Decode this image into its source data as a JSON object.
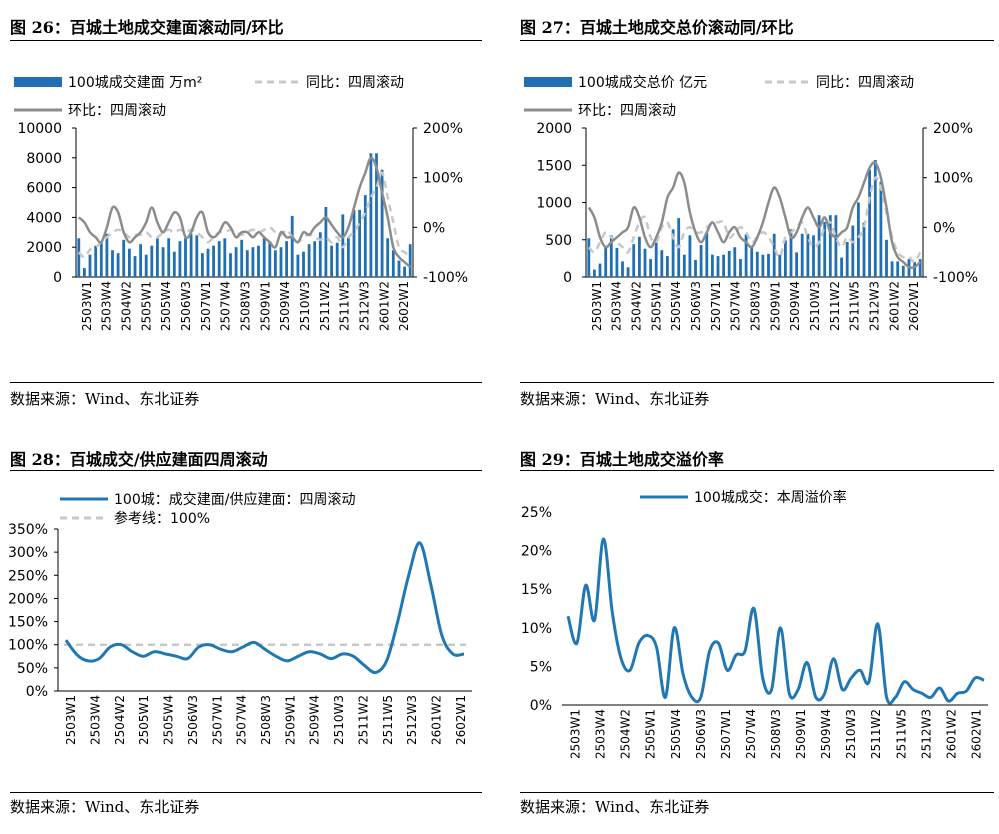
{
  "colors": {
    "bar": "#1f6fb2",
    "line_blue": "#1f78b4",
    "line_gray": "#8c8c8c",
    "ref_gray": "#c8c8c8"
  },
  "ticks_panel_top": [
    "2503W1",
    "2503W4",
    "2504W2",
    "2505W1",
    "2505W4",
    "2506W3",
    "2507W1",
    "2507W4",
    "2508W3",
    "2509W1",
    "2509W4",
    "2510W3",
    "2511W2",
    "2511W5",
    "2512W3",
    "2601W2",
    "2602W1"
  ],
  "panels": [
    {
      "title": "图 26：百城土地成交建面滚动同/环比",
      "source": "数据来源：Wind、东北证券",
      "chart_data": {
        "type": "bar",
        "title": "百城土地成交建面滚动同/环比",
        "legend": [
          "100城成交建面  万m²",
          "同比：四周滚动",
          "环比：四周滚动"
        ],
        "ylim_left": [
          0,
          10000
        ],
        "yticks_left": [
          "0",
          "2000",
          "4000",
          "6000",
          "8000",
          "10000"
        ],
        "ylim_right": [
          -100,
          200
        ],
        "yticks_right": [
          "-100%",
          "0%",
          "100%",
          "200%"
        ],
        "bars": [
          2600,
          600,
          1500,
          2100,
          2400,
          2900,
          1800,
          1600,
          2500,
          1900,
          1400,
          2200,
          1500,
          2100,
          2600,
          2000,
          2600,
          1700,
          2400,
          2600,
          2900,
          2800,
          1600,
          1900,
          2100,
          2400,
          2600,
          1600,
          2000,
          2500,
          1800,
          2000,
          2100,
          2600,
          2400,
          1800,
          2000,
          2400,
          4100,
          1500,
          1700,
          2200,
          2400,
          3000,
          4700,
          2100,
          2300,
          4200,
          2700,
          4500,
          4500,
          5500,
          8300,
          8300,
          7200,
          2600,
          1800,
          1100,
          700,
          2200
        ],
        "yoy": [
          -50,
          -60,
          -45,
          -40,
          -30,
          -20,
          -10,
          -5,
          -10,
          -20,
          -15,
          -15,
          -10,
          -20,
          -20,
          -10,
          -5,
          -10,
          -5,
          -10,
          -5,
          -10,
          -20,
          -30,
          -20,
          -10,
          -10,
          -5,
          -10,
          -15,
          -10,
          -5,
          -10,
          -5,
          0,
          -10,
          -15,
          -5,
          -20,
          -30,
          -20,
          -15,
          -20,
          -25,
          -20,
          -30,
          -20,
          -40,
          -20,
          -10,
          10,
          30,
          60,
          80,
          110,
          60,
          10,
          -40,
          -50,
          -60
        ],
        "mom": [
          20,
          10,
          -10,
          -20,
          -30,
          0,
          40,
          30,
          -10,
          -30,
          -20,
          -10,
          10,
          40,
          10,
          -10,
          10,
          30,
          20,
          -20,
          -10,
          20,
          30,
          -10,
          -20,
          -10,
          10,
          0,
          -20,
          -10,
          -10,
          -20,
          -10,
          -20,
          -30,
          -40,
          -10,
          -20,
          -20,
          -30,
          -10,
          -15,
          0,
          10,
          20,
          5,
          -10,
          -20,
          0,
          40,
          80,
          110,
          140,
          120,
          70,
          20,
          -40,
          -60,
          -70,
          -80
        ],
        "xticks": [
          "2503W1",
          "2503W4",
          "2504W2",
          "2505W1",
          "2505W4",
          "2506W3",
          "2507W1",
          "2507W4",
          "2508W3",
          "2509W1",
          "2509W4",
          "2510W3",
          "2511W2",
          "2511W5",
          "2512W3",
          "2601W2",
          "2602W1"
        ]
      }
    },
    {
      "title": "图 27：百城土地成交总价滚动同/环比",
      "source": "数据来源：Wind、东北证券",
      "chart_data": {
        "type": "bar",
        "title": "百城土地成交总价滚动同/环比",
        "legend": [
          "100城成交总价  亿元",
          "同比：四周滚动",
          "环比：四周滚动"
        ],
        "ylim_left": [
          0,
          2000
        ],
        "yticks_left": [
          "0",
          "500",
          "1000",
          "1500",
          "2000"
        ],
        "ylim_right": [
          -100,
          200
        ],
        "yticks_right": [
          "-100%",
          "0%",
          "100%",
          "200%"
        ],
        "bars": [
          520,
          100,
          180,
          420,
          560,
          390,
          210,
          130,
          440,
          540,
          380,
          240,
          460,
          360,
          280,
          640,
          790,
          300,
          560,
          230,
          430,
          590,
          300,
          280,
          300,
          350,
          400,
          240,
          570,
          420,
          340,
          300,
          310,
          580,
          300,
          490,
          640,
          330,
          580,
          580,
          560,
          830,
          740,
          830,
          830,
          260,
          470,
          690,
          1000,
          730,
          1440,
          1570,
          1280,
          500,
          210,
          210,
          150,
          240,
          200,
          240
        ],
        "yoy": [
          -40,
          -50,
          -30,
          -10,
          -20,
          -30,
          -40,
          -50,
          -20,
          10,
          20,
          -20,
          -30,
          0,
          10,
          -20,
          -40,
          -10,
          0,
          -10,
          -10,
          0,
          10,
          10,
          10,
          -20,
          -10,
          0,
          -10,
          -30,
          -20,
          -10,
          -20,
          -40,
          -60,
          -20,
          -10,
          0,
          10,
          -20,
          -40,
          -30,
          0,
          10,
          -20,
          -40,
          -20,
          -30,
          -20,
          0,
          60,
          100,
          80,
          30,
          -20,
          -50,
          -60,
          -60,
          -70,
          -50
        ],
        "mom": [
          40,
          20,
          -20,
          -40,
          -30,
          -20,
          -10,
          0,
          40,
          20,
          -20,
          -40,
          -20,
          10,
          60,
          80,
          110,
          90,
          30,
          -10,
          -30,
          -10,
          10,
          -10,
          -30,
          -10,
          0,
          -20,
          -30,
          -40,
          -20,
          10,
          50,
          80,
          60,
          20,
          -20,
          -10,
          20,
          40,
          20,
          0,
          20,
          -10,
          -20,
          -10,
          0,
          40,
          60,
          90,
          120,
          130,
          100,
          40,
          -30,
          -60,
          -70,
          -80,
          -80,
          -70
        ],
        "xticks": [
          "2503W1",
          "2503W4",
          "2504W2",
          "2505W1",
          "2505W4",
          "2506W3",
          "2507W1",
          "2507W4",
          "2508W3",
          "2509W1",
          "2509W4",
          "2510W3",
          "2511W2",
          "2511W5",
          "2512W3",
          "2601W2",
          "2602W1"
        ]
      }
    },
    {
      "title": "图 28：百城成交/供应建面四周滚动",
      "source": "数据来源：Wind、东北证券",
      "chart_data": {
        "type": "line",
        "title": "百城成交/供应建面四周滚动",
        "legend": [
          "100城：成交建面/供应建面：四周滚动",
          "参考线：100%"
        ],
        "ylim": [
          0,
          350
        ],
        "yticks": [
          "0%",
          "50%",
          "100%",
          "150%",
          "200%",
          "250%",
          "300%",
          "350%"
        ],
        "reference": 100,
        "series": [
          110,
          78,
          65,
          70,
          95,
          100,
          85,
          75,
          85,
          80,
          75,
          70,
          95,
          100,
          90,
          85,
          95,
          105,
          90,
          75,
          65,
          75,
          85,
          80,
          70,
          80,
          75,
          55,
          40,
          65,
          150,
          250,
          320,
          230,
          120,
          80,
          80
        ],
        "xticks": [
          "2503W1",
          "2503W4",
          "2504W2",
          "2505W1",
          "2505W4",
          "2506W3",
          "2507W1",
          "2507W4",
          "2508W3",
          "2509W1",
          "2509W4",
          "2510W3",
          "2511W2",
          "2511W5",
          "2512W3",
          "2601W2",
          "2602W1"
        ]
      }
    },
    {
      "title": "图 29：百城土地成交溢价率",
      "source": "数据来源：Wind、东北证券",
      "chart_data": {
        "type": "line",
        "title": "百城土地成交溢价率",
        "legend": [
          "100城成交：本周溢价率"
        ],
        "ylim": [
          0,
          25
        ],
        "yticks": [
          "0%",
          "5%",
          "10%",
          "15%",
          "20%",
          "25%"
        ],
        "series": [
          11.5,
          8.0,
          15.5,
          11.0,
          21.5,
          12.0,
          6.0,
          4.5,
          8.0,
          9.0,
          7.5,
          1.0,
          10.0,
          4.0,
          1.0,
          1.0,
          7.0,
          8.0,
          4.5,
          6.5,
          7.0,
          12.5,
          3.5,
          2.0,
          10.0,
          1.5,
          2.0,
          5.5,
          1.0,
          1.5,
          6.0,
          2.0,
          3.5,
          4.5,
          3.0,
          10.5,
          1.0,
          1.0,
          3.0,
          2.0,
          1.5,
          1.0,
          2.2,
          0.5,
          1.5,
          1.8,
          3.5,
          3.2
        ],
        "xticks": [
          "2503W1",
          "2503W4",
          "2504W2",
          "2505W1",
          "2505W4",
          "2506W3",
          "2507W1",
          "2507W4",
          "2508W3",
          "2509W1",
          "2509W4",
          "2510W3",
          "2511W2",
          "2511W5",
          "2512W3",
          "2601W2",
          "2602W1"
        ]
      }
    }
  ]
}
